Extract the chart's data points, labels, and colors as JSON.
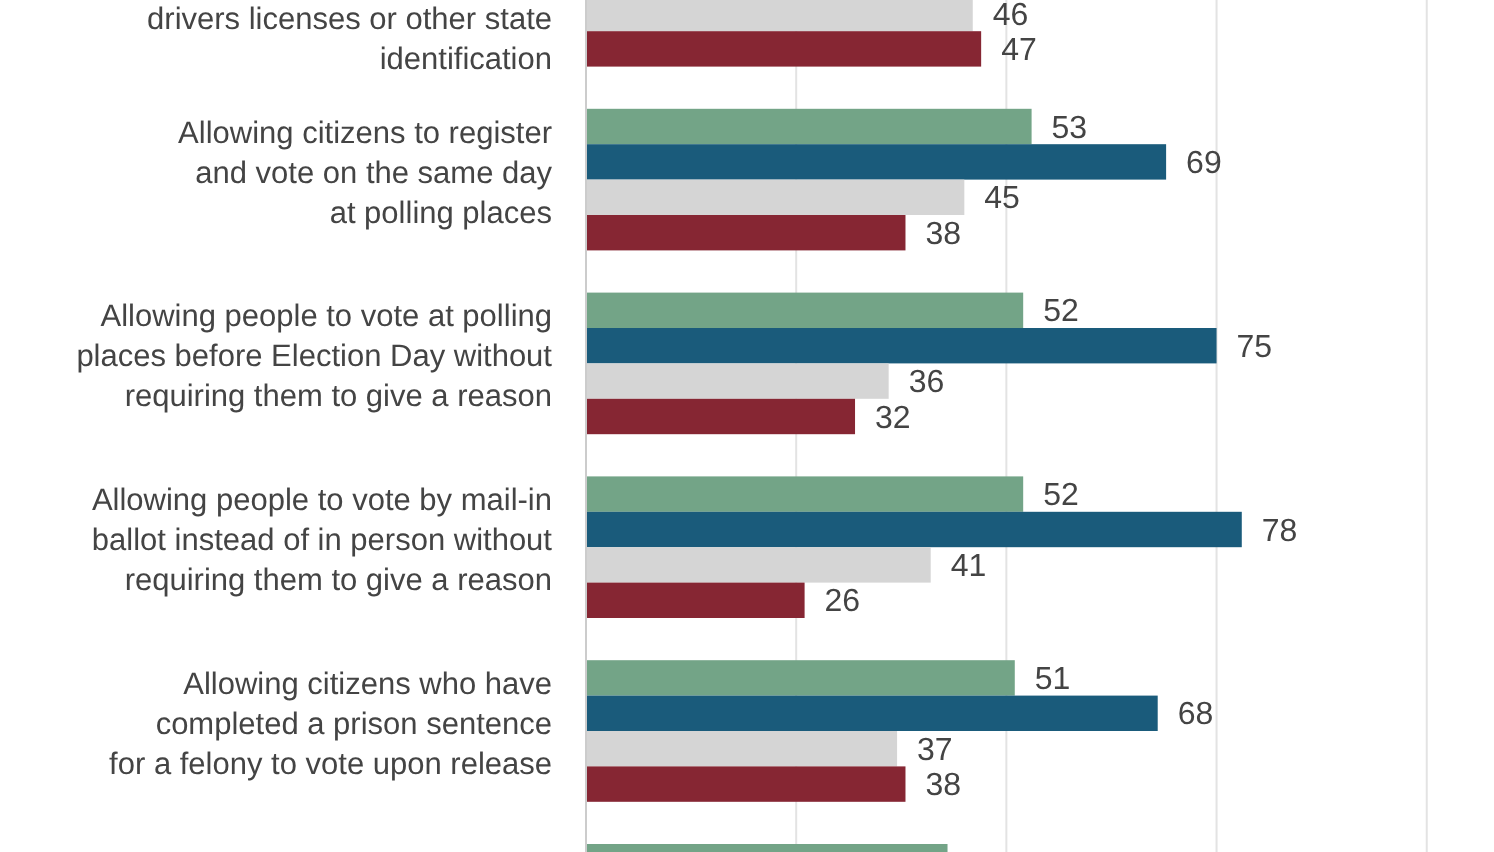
{
  "chart_data": {
    "type": "bar",
    "orientation": "horizontal",
    "categories": [
      "drivers licenses or other state\nidentification",
      "Allowing citizens to register\nand vote on the same day\nat polling places",
      "Allowing people to vote at polling\nplaces before Election Day without\nrequiring them to give a reason",
      "Allowing people to vote by mail-in\nballot instead of in person without\nrequiring them to give a reason",
      "Allowing citizens who have\ncompleted a prison sentence\nfor a felony to vote upon release",
      null
    ],
    "series": [
      {
        "color": "#73a487",
        "values": [
          null,
          53,
          52,
          52,
          51,
          43
        ],
        "value_labels": [
          null,
          "53",
          "52",
          "52",
          "51",
          null
        ]
      },
      {
        "color": "#1a5b7b",
        "values": [
          null,
          69,
          75,
          78,
          68,
          null
        ],
        "value_labels": [
          null,
          "69",
          "75",
          "78",
          "68",
          null
        ]
      },
      {
        "color": "#d5d5d5",
        "values": [
          46,
          45,
          36,
          41,
          37,
          null
        ],
        "value_labels": [
          "46",
          "45",
          "36",
          "41",
          "37",
          null
        ]
      },
      {
        "color": "#862633",
        "values": [
          47,
          38,
          32,
          26,
          38,
          null
        ],
        "value_labels": [
          "47",
          "38",
          "32",
          "26",
          "38",
          null
        ]
      }
    ],
    "xlim": [
      0,
      108
    ],
    "xticks": [
      {
        "value": 0,
        "label": null
      },
      {
        "value": 25,
        "label": null
      },
      {
        "value": 50,
        "label": null
      },
      {
        "value": 75,
        "label": null
      },
      {
        "value": 100,
        "label": null
      }
    ],
    "grid": "x",
    "tick_labels": "y"
  }
}
